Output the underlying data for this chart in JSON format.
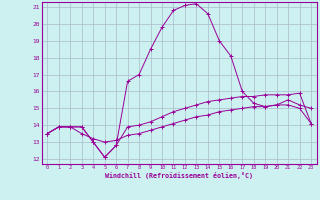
{
  "xlabel": "Windchill (Refroidissement éolien,°C)",
  "background_color": "#cdf0f0",
  "grid_color": "#aabbcc",
  "line_color": "#990099",
  "xmin": 0,
  "xmax": 23,
  "ymin": 12,
  "ymax": 21,
  "yticks": [
    12,
    13,
    14,
    15,
    16,
    17,
    18,
    19,
    20,
    21
  ],
  "xticks": [
    0,
    1,
    2,
    3,
    4,
    5,
    6,
    7,
    8,
    9,
    10,
    11,
    12,
    13,
    14,
    15,
    16,
    17,
    18,
    19,
    20,
    21,
    22,
    23
  ],
  "line1_x": [
    0,
    1,
    2,
    3,
    4,
    5,
    6,
    7,
    8,
    9,
    10,
    11,
    12,
    13,
    14,
    15,
    16,
    17,
    18,
    19,
    20,
    21,
    22,
    23
  ],
  "line1_y": [
    13.5,
    13.9,
    13.9,
    13.9,
    13.0,
    12.1,
    12.8,
    13.9,
    14.0,
    14.2,
    14.5,
    14.8,
    15.0,
    15.2,
    15.4,
    15.5,
    15.6,
    15.7,
    15.7,
    15.8,
    15.8,
    15.8,
    15.9,
    14.1
  ],
  "line2_x": [
    0,
    1,
    2,
    3,
    4,
    5,
    6,
    7,
    8,
    9,
    10,
    11,
    12,
    13,
    14,
    15,
    16,
    17,
    18,
    19,
    20,
    21,
    22,
    23
  ],
  "line2_y": [
    13.5,
    13.9,
    13.9,
    13.9,
    13.0,
    12.1,
    12.8,
    16.6,
    17.0,
    18.5,
    19.8,
    20.8,
    21.1,
    21.2,
    20.6,
    19.0,
    18.1,
    16.0,
    15.3,
    15.1,
    15.2,
    15.5,
    15.2,
    15.0
  ],
  "line3_x": [
    0,
    1,
    2,
    3,
    4,
    5,
    6,
    7,
    8,
    9,
    10,
    11,
    12,
    13,
    14,
    15,
    16,
    17,
    18,
    19,
    20,
    21,
    22,
    23
  ],
  "line3_y": [
    13.5,
    13.9,
    13.9,
    13.5,
    13.2,
    13.0,
    13.1,
    13.4,
    13.5,
    13.7,
    13.9,
    14.1,
    14.3,
    14.5,
    14.6,
    14.8,
    14.9,
    15.0,
    15.1,
    15.1,
    15.2,
    15.2,
    15.0,
    14.1
  ]
}
